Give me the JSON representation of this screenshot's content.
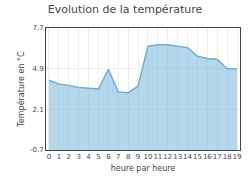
{
  "chart_data": {
    "type": "area",
    "title": "Evolution de la température",
    "x_label": "heure par heure",
    "y_label": "Température en °C",
    "x": [
      0,
      1,
      2,
      3,
      4,
      5,
      6,
      7,
      8,
      9,
      10,
      11,
      12,
      13,
      14,
      15,
      16,
      17,
      18,
      19
    ],
    "values": [
      4.1,
      3.85,
      3.75,
      3.6,
      3.55,
      3.5,
      4.85,
      3.3,
      3.25,
      3.7,
      6.45,
      6.55,
      6.55,
      6.45,
      6.35,
      5.75,
      5.6,
      5.55,
      4.9,
      4.9
    ],
    "color": "#6ab0d8",
    "xlim": [
      -0.3,
      19.3
    ],
    "xticks": [
      0,
      1,
      2,
      3,
      4,
      5,
      6,
      7,
      8,
      9,
      10,
      11,
      12,
      13,
      14,
      15,
      16,
      17,
      18,
      19
    ],
    "ylim": [
      -0.7,
      7.7
    ],
    "yticks": [
      -0.7,
      2.1,
      4.9,
      7.7
    ],
    "grid": true
  }
}
